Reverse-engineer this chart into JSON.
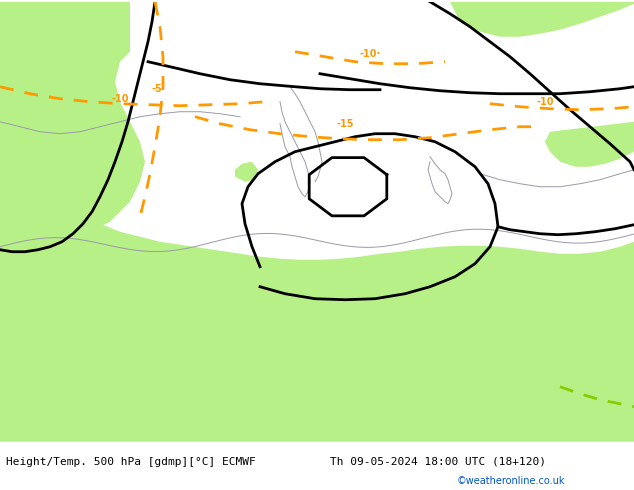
{
  "title_left": "Height/Temp. 500 hPa [gdmp][°C] ECMWF",
  "title_right": "Th 09-05-2024 18:00 UTC (18+120)",
  "credit": "©weatheronline.co.uk",
  "bg_green": "#b8f088",
  "bg_gray": "#d8d8d8",
  "orange_color": "#ff9900",
  "green_line_color": "#88cc00",
  "black_color": "#000000",
  "coast_color": "#9999aa",
  "white_bar": "#ffffff",
  "title_color": "#000000",
  "credit_color": "#0055cc",
  "fig_width": 6.34,
  "fig_height": 4.9,
  "dpi": 100,
  "title_fontsize": 8.0,
  "credit_fontsize": 7.0
}
